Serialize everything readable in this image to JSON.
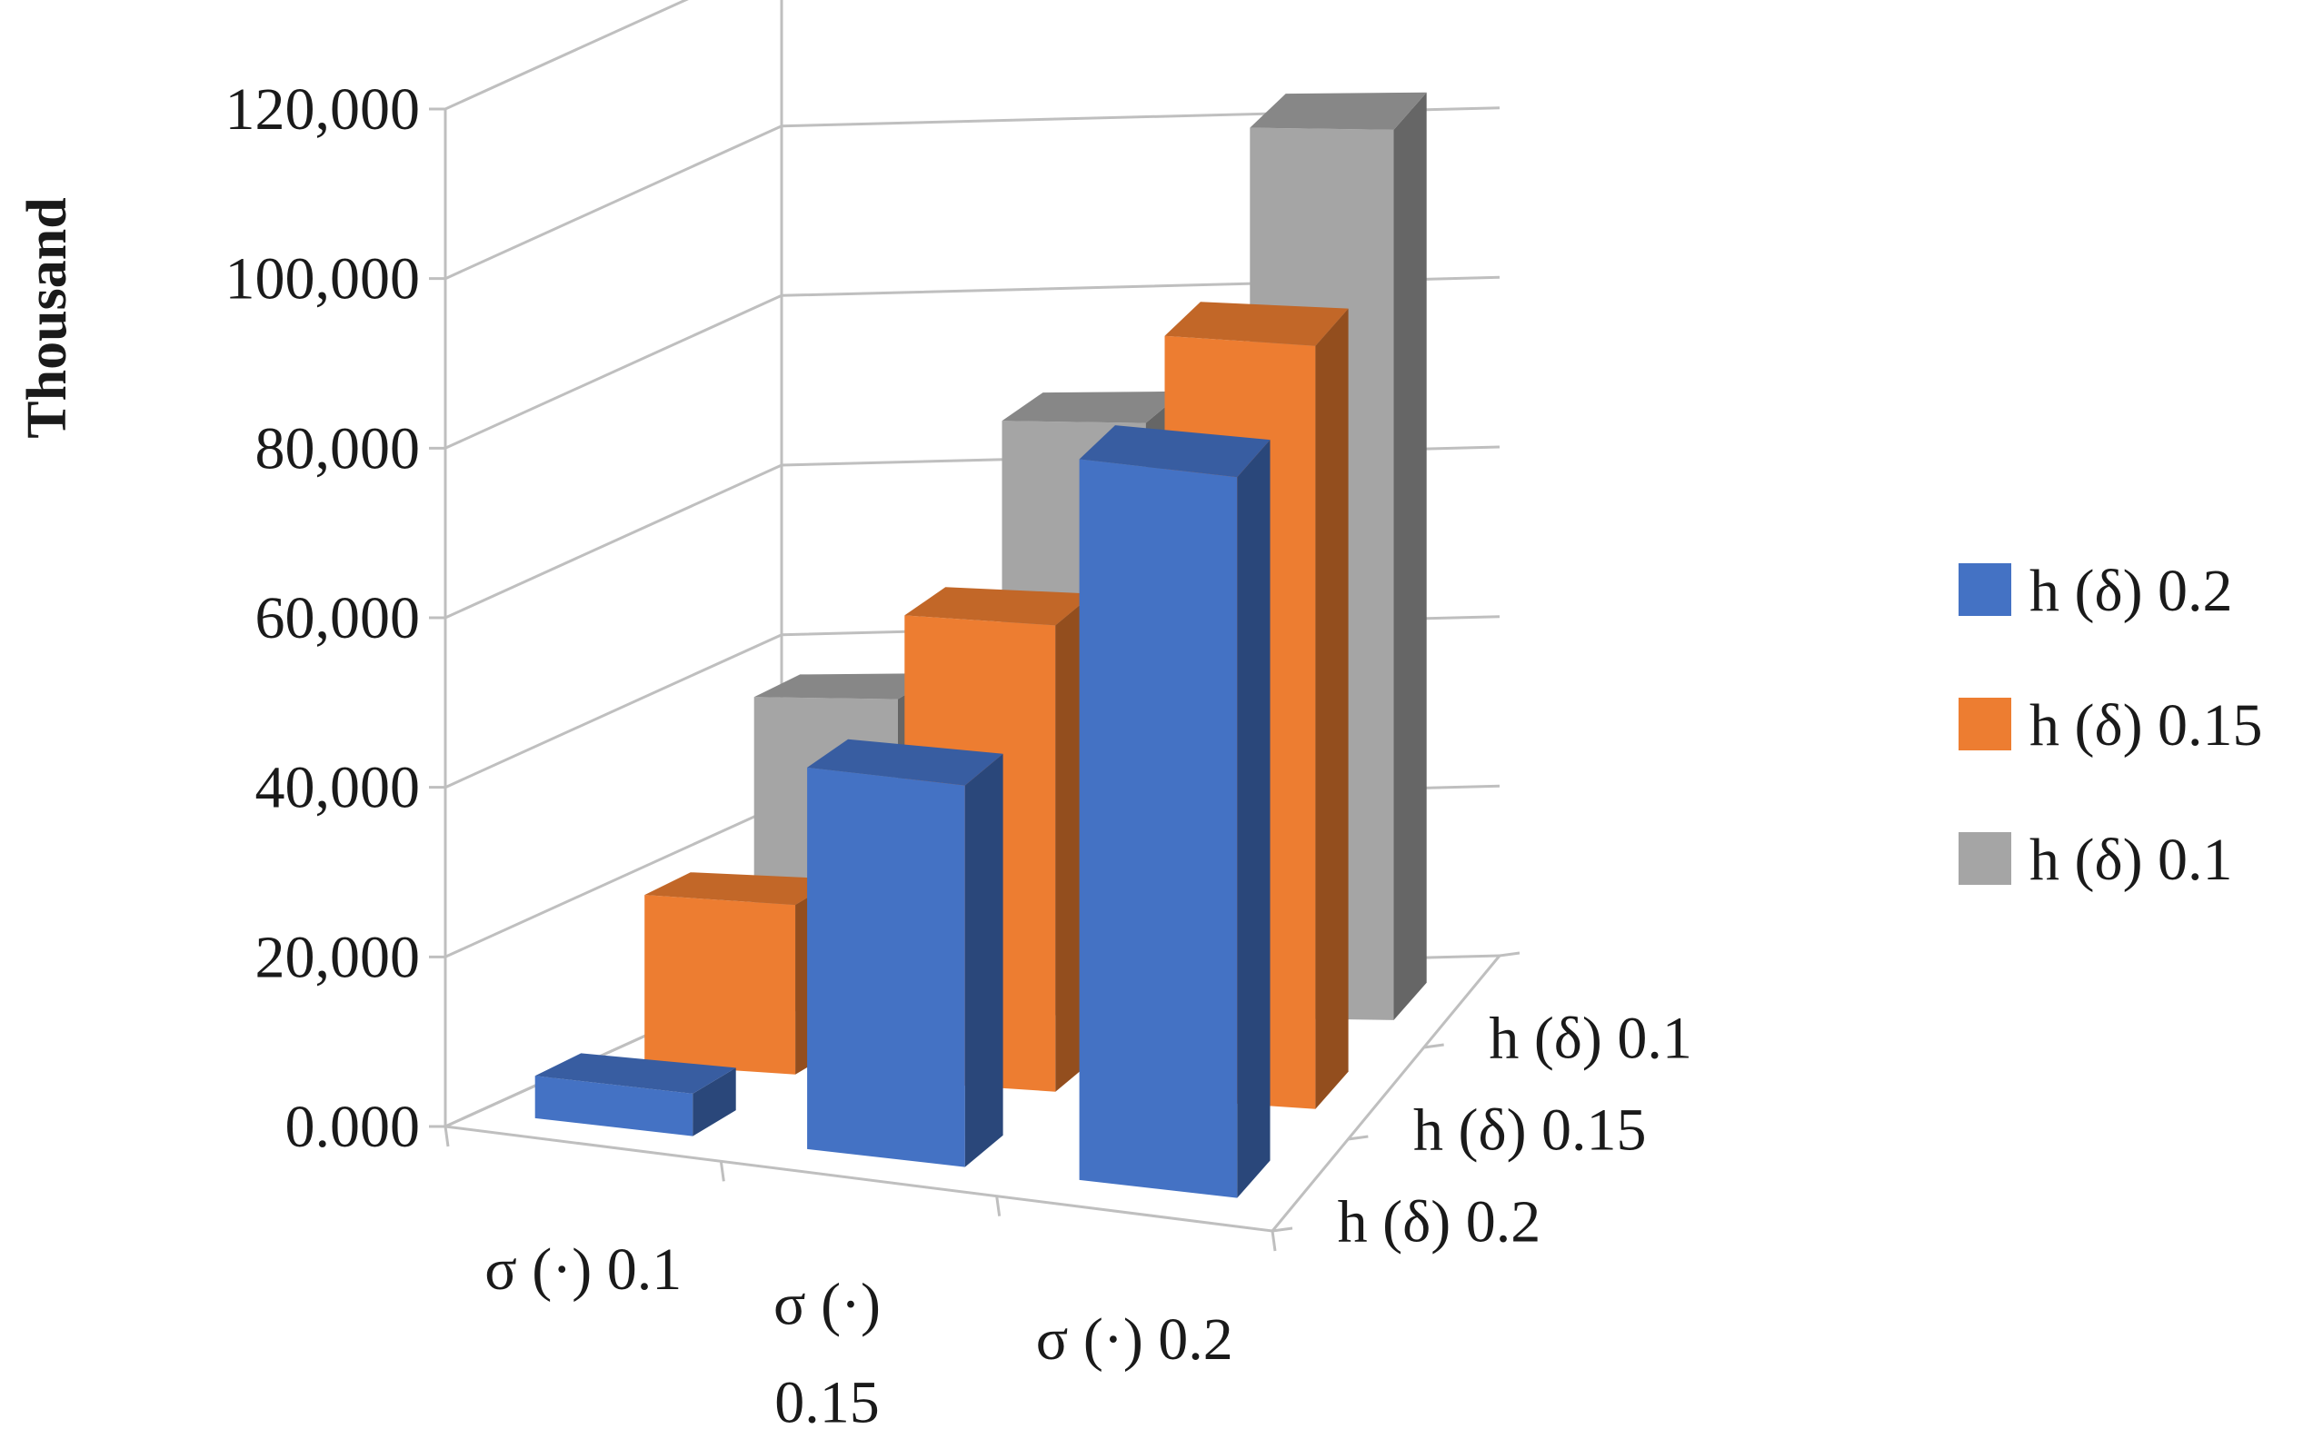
{
  "chart_data": {
    "type": "bar",
    "subtype": "3d-clustered-column",
    "title": "",
    "ylabel": "Thousand",
    "xlabel": "",
    "ylim": [
      0,
      120000
    ],
    "y_ticks": [
      "0.000",
      "20,000",
      "40,000",
      "60,000",
      "80,000",
      "100,000",
      "120,000"
    ],
    "categories": [
      "σ (·) 0.1",
      "σ (·) 0.15",
      "σ (·) 0.2"
    ],
    "category_lines": [
      [
        "σ (·) 0.1"
      ],
      [
        "σ (·)",
        "0.15"
      ],
      [
        "σ (·) 0.2"
      ]
    ],
    "depth_labels": [
      "h (δ) 0.2",
      "h (δ) 0.15",
      "h (δ) 0.1"
    ],
    "grid": true,
    "legend_position": "right",
    "series": [
      {
        "name": "h (δ) 0.2",
        "color": "#4472C4",
        "values": [
          5000,
          45000,
          85000
        ]
      },
      {
        "name": "h (δ) 0.15",
        "color": "#ED7D31",
        "values": [
          20000,
          55000,
          90000
        ]
      },
      {
        "name": "h (δ) 0.1",
        "color": "#A5A5A5",
        "values": [
          37000,
          70000,
          105000
        ]
      }
    ]
  }
}
